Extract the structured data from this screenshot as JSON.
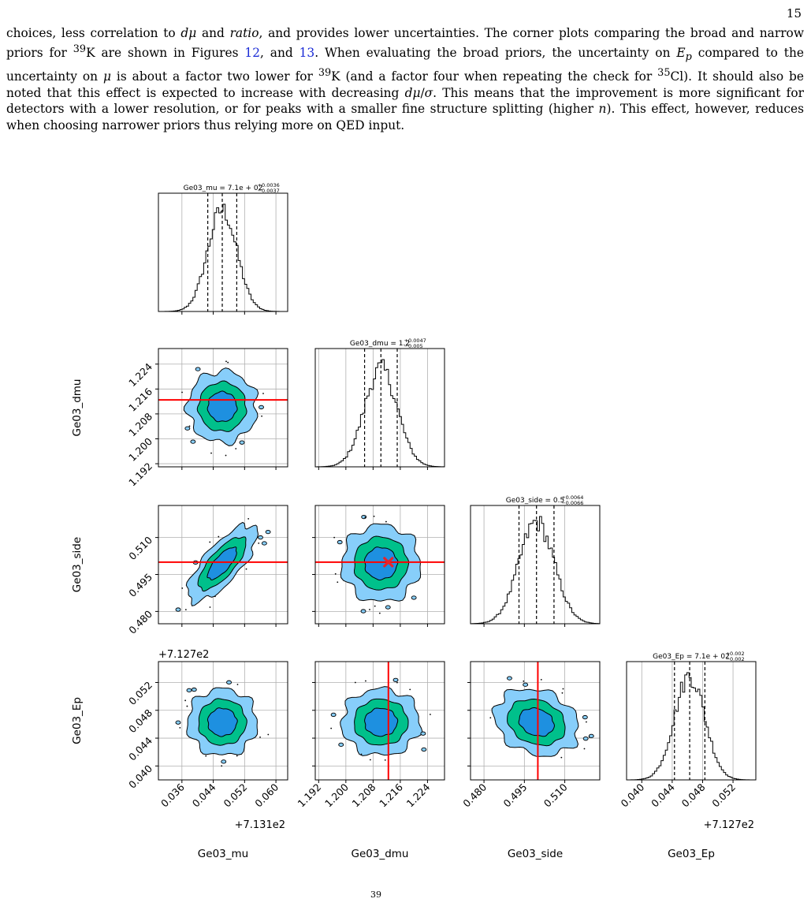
{
  "page": {
    "number": "15",
    "paragraph_html": "choices, less correlation to <i>dμ</i> and <i>ratio</i>, and provides lower uncertainties. The corner plots comparing the broad and narrow priors for <sup>39</sup>K are shown in Figures <a data-name=\"figure-link-12\" data-interactable=\"true\">12</a>, and <a data-name=\"figure-link-13\" data-interactable=\"true\">13</a>. When evaluating the broad priors, the uncertainty on <i>E<sub>p</sub></i> compared to the uncertainty on <i>μ</i> is about a factor two lower for <sup>39</sup>K (and a factor four when repeating the check for <sup>35</sup>Cl). It should also be noted that this effect is expected to increase with decreasing <i>dμ</i>/<i>σ</i>. This means that the improvement is more significant for detectors with a lower resolution, or for peaks with a smaller fine structure splitting (higher <i>n</i>). This effect, however, reduces when choosing narrower priors thus relying more on QED input.",
    "footer_fragment": "39"
  },
  "chart_data": {
    "type": "corner",
    "parameters": [
      "Ge03_mu",
      "Ge03_dmu",
      "Ge03_side",
      "Ge03_Ep"
    ],
    "titles": [
      {
        "name": "Ge03_mu",
        "value": "7.1e + 02",
        "plus": "+0.0036",
        "minus": "−0.0037"
      },
      {
        "name": "Ge03_dmu",
        "value": "1.2",
        "plus": "+0.0047",
        "minus": "−0.005"
      },
      {
        "name": "Ge03_side",
        "value": "0.5",
        "plus": "+0.0064",
        "minus": "−0.0066"
      },
      {
        "name": "Ge03_Ep",
        "value": "7.1e + 02",
        "plus": "+0.002",
        "minus": "−0.002"
      }
    ],
    "ticks": {
      "Ge03_mu": [
        "0.036",
        "0.044",
        "0.052",
        "0.060"
      ],
      "Ge03_dmu": [
        "1.192",
        "1.200",
        "1.208",
        "1.216",
        "1.224"
      ],
      "Ge03_side": [
        "0.480",
        "0.495",
        "0.510"
      ],
      "Ge03_Ep": [
        "0.040",
        "0.044",
        "0.048",
        "0.052"
      ]
    },
    "offsets": {
      "Ge03_mu": "+7.131e2",
      "Ge03_Ep": "+7.127e2"
    },
    "ranges": {
      "Ge03_mu": [
        0.03,
        0.063
      ],
      "Ge03_dmu": [
        1.191,
        1.229
      ],
      "Ge03_side": [
        0.475,
        0.523
      ],
      "Ge03_Ep": [
        0.038,
        0.055
      ]
    },
    "means": {
      "Ge03_mu": 0.0463,
      "Ge03_dmu": 1.2103,
      "Ge03_side": 0.4995,
      "Ge03_Ep": 0.0463
    },
    "sigmas": {
      "Ge03_mu": 0.0037,
      "Ge03_dmu": 0.0048,
      "Ge03_side": 0.0065,
      "Ge03_Ep": 0.002
    },
    "correlations": {
      "side_mu": 0.75,
      "Ep_side": -0.2,
      "Ep_dmu": 0.0,
      "dmu_mu": 0.0,
      "side_dmu": 0.0,
      "Ep_mu": 0.0
    },
    "truth": {
      "Ge03_dmu": 1.2125,
      "Ge03_side": 0.5
    },
    "truth_marker": {
      "Ge03_dmu": 1.2125,
      "Ge03_side": 0.5
    },
    "contour_colors": [
      "#87CEFA",
      "#00C08B",
      "#1E90E0"
    ],
    "truth_color": "#FF0000",
    "marker_color": "#E8242A",
    "grid": true
  }
}
